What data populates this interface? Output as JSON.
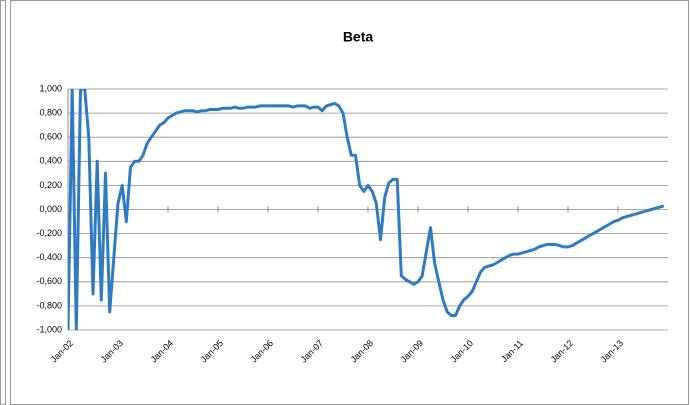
{
  "chart_data": {
    "type": "line",
    "title": "Beta",
    "x": [
      "2002-01",
      "2002-02",
      "2002-03",
      "2002-04",
      "2002-05",
      "2002-06",
      "2002-07",
      "2002-08",
      "2002-09",
      "2002-10",
      "2002-11",
      "2002-12",
      "2003-01",
      "2003-02",
      "2003-03",
      "2003-04",
      "2003-05",
      "2003-06",
      "2003-07",
      "2003-08",
      "2003-09",
      "2003-10",
      "2003-11",
      "2003-12",
      "2004-01",
      "2004-02",
      "2004-03",
      "2004-04",
      "2004-05",
      "2004-06",
      "2004-07",
      "2004-08",
      "2004-09",
      "2004-10",
      "2004-11",
      "2004-12",
      "2005-01",
      "2005-02",
      "2005-03",
      "2005-04",
      "2005-05",
      "2005-06",
      "2005-07",
      "2005-08",
      "2005-09",
      "2005-10",
      "2005-11",
      "2005-12",
      "2006-01",
      "2006-02",
      "2006-03",
      "2006-04",
      "2006-05",
      "2006-06",
      "2006-07",
      "2006-08",
      "2006-09",
      "2006-10",
      "2006-11",
      "2006-12",
      "2007-01",
      "2007-02",
      "2007-03",
      "2007-04",
      "2007-05",
      "2007-06",
      "2007-07",
      "2007-08",
      "2007-09",
      "2007-10",
      "2007-11",
      "2007-12",
      "2008-01",
      "2008-02",
      "2008-03",
      "2008-04",
      "2008-05",
      "2008-06",
      "2008-07",
      "2008-08",
      "2008-09",
      "2008-10",
      "2008-11",
      "2008-12",
      "2009-01",
      "2009-02",
      "2009-03",
      "2009-04",
      "2009-05",
      "2009-06",
      "2009-07",
      "2009-08",
      "2009-09",
      "2009-10",
      "2009-11",
      "2009-12",
      "2010-01",
      "2010-02",
      "2010-03",
      "2010-04",
      "2010-05",
      "2010-06",
      "2010-07",
      "2010-08",
      "2010-09",
      "2010-10",
      "2010-11",
      "2010-12",
      "2011-01",
      "2011-02",
      "2011-03",
      "2011-04",
      "2011-05",
      "2011-06",
      "2011-07",
      "2011-08",
      "2011-09",
      "2011-10",
      "2011-11",
      "2011-12",
      "2012-01",
      "2012-02",
      "2012-03",
      "2012-04",
      "2012-05",
      "2012-06",
      "2012-07",
      "2012-08",
      "2012-09",
      "2012-10",
      "2012-11",
      "2012-12",
      "2013-01",
      "2013-02",
      "2013-03",
      "2013-04",
      "2013-05",
      "2013-06",
      "2013-07",
      "2013-08",
      "2013-09",
      "2013-10",
      "2013-11",
      "2013-12"
    ],
    "series": [
      {
        "name": "Beta",
        "color": "#2e7bc4",
        "values": [
          -1,
          1,
          -1,
          1,
          1,
          0.6,
          -0.7,
          0.4,
          -0.75,
          0.3,
          -0.85,
          -0.4,
          0.05,
          0.2,
          -0.1,
          0.35,
          0.4,
          0.4,
          0.45,
          0.55,
          0.6,
          0.65,
          0.7,
          0.72,
          0.76,
          0.78,
          0.8,
          0.81,
          0.82,
          0.82,
          0.82,
          0.81,
          0.82,
          0.82,
          0.83,
          0.83,
          0.83,
          0.84,
          0.84,
          0.84,
          0.85,
          0.84,
          0.84,
          0.85,
          0.85,
          0.85,
          0.86,
          0.86,
          0.86,
          0.86,
          0.86,
          0.86,
          0.86,
          0.86,
          0.85,
          0.86,
          0.86,
          0.86,
          0.84,
          0.85,
          0.85,
          0.82,
          0.86,
          0.87,
          0.88,
          0.86,
          0.8,
          0.6,
          0.45,
          0.45,
          0.2,
          0.15,
          0.2,
          0.15,
          0.05,
          -0.25,
          0.1,
          0.22,
          0.25,
          0.25,
          -0.55,
          -0.58,
          -0.6,
          -0.62,
          -0.6,
          -0.55,
          -0.35,
          -0.15,
          -0.45,
          -0.6,
          -0.75,
          -0.85,
          -0.88,
          -0.88,
          -0.8,
          -0.75,
          -0.72,
          -0.68,
          -0.6,
          -0.52,
          -0.48,
          -0.47,
          -0.46,
          -0.44,
          -0.42,
          -0.4,
          -0.38,
          -0.37,
          -0.37,
          -0.36,
          -0.35,
          -0.34,
          -0.33,
          -0.31,
          -0.3,
          -0.29,
          -0.29,
          -0.29,
          -0.3,
          -0.31,
          -0.31,
          -0.3,
          -0.28,
          -0.26,
          -0.24,
          -0.22,
          -0.2,
          -0.18,
          -0.16,
          -0.14,
          -0.12,
          -0.1,
          -0.09,
          -0.07,
          -0.06,
          -0.05,
          -0.04,
          -0.03,
          -0.02,
          -0.01,
          0,
          0.01,
          0.02,
          0.03
        ]
      }
    ],
    "xlim": [
      "2002-01",
      "2014-01"
    ],
    "xticks": [
      {
        "value": "2002-01",
        "label": "Jan-02"
      },
      {
        "value": "2003-01",
        "label": "Jan-03"
      },
      {
        "value": "2004-01",
        "label": "Jan-04"
      },
      {
        "value": "2005-01",
        "label": "Jan-05"
      },
      {
        "value": "2006-01",
        "label": "Jan-06"
      },
      {
        "value": "2007-01",
        "label": "Jan-07"
      },
      {
        "value": "2008-01",
        "label": "Jan-08"
      },
      {
        "value": "2009-01",
        "label": "Jan-09"
      },
      {
        "value": "2010-01",
        "label": "Jan-10"
      },
      {
        "value": "2011-01",
        "label": "Jan-11"
      },
      {
        "value": "2012-01",
        "label": "Jan-12"
      },
      {
        "value": "2013-01",
        "label": "Jan-13"
      }
    ],
    "ylim": [
      -1,
      1
    ],
    "yticks": [
      {
        "value": -1,
        "label": "-1,000"
      },
      {
        "value": -0.8,
        "label": "-0,800"
      },
      {
        "value": -0.6,
        "label": "-0,600"
      },
      {
        "value": -0.4,
        "label": "-0,400"
      },
      {
        "value": -0.2,
        "label": "-0,200"
      },
      {
        "value": 0,
        "label": "0,000"
      },
      {
        "value": 0.2,
        "label": "0,200"
      },
      {
        "value": 0.4,
        "label": "0,400"
      },
      {
        "value": 0.6,
        "label": "0,600"
      },
      {
        "value": 0.8,
        "label": "0,800"
      },
      {
        "value": 1,
        "label": "1,000"
      }
    ],
    "grid": true
  }
}
